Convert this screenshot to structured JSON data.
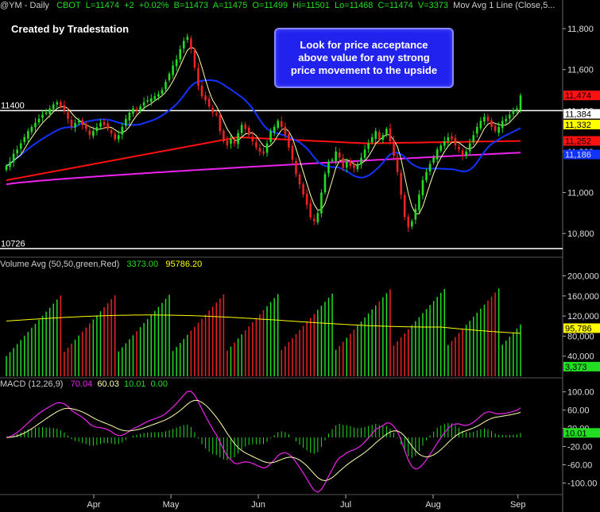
{
  "header": {
    "symbol": "@YM - Daily",
    "exchange": "CBOT",
    "last": "L=11474",
    "change": "+2",
    "change_pct": "+0.02%",
    "bid": "B=11473",
    "ask": "A=11475",
    "open": "O=11499",
    "high": "Hi=11501",
    "low": "Lo=11468",
    "close": "C=11474",
    "volume": "V=3373",
    "study": "Mov Avg 1 Line  (Close,5..."
  },
  "created_by": "Created by Tradestation",
  "annotation": [
    "Look for price acceptance",
    "above value for any strong",
    "price movement to the upside"
  ],
  "volume_header": {
    "name": "Volume Avg  (50,50,green,Red)",
    "v1": "3373.00",
    "v2": "95786.20"
  },
  "macd_header": {
    "name": "MACD  (12,26,9)",
    "v1": "70.04",
    "v2": "60.03",
    "v3": "10.01",
    "v4": "0.00"
  },
  "colors": {
    "up": "#22dd22",
    "down": "#ee2222",
    "ma5": "#ffffaa",
    "blue": "#1133ff",
    "red": "#ff1111",
    "magenta": "#ee22ee",
    "white": "#ffffff",
    "yellow": "#ffff00"
  },
  "chart_data": [
    {
      "type": "candlestick",
      "title": "@YM - Daily",
      "x_labels": [
        "Apr",
        "May",
        "Jun",
        "Jul",
        "Aug",
        "Sep"
      ],
      "y_ticks": [
        10800,
        11000,
        11200,
        11400,
        11600,
        11800
      ],
      "y_tick_labels": [
        "10,800",
        "11,000",
        "11,200",
        "11,400",
        "11,600",
        "11,800"
      ],
      "ylim": [
        10700,
        11870
      ],
      "horizontal_lines": [
        {
          "value": 11400,
          "label": "11400"
        },
        {
          "value": 10726,
          "label": "10726"
        }
      ],
      "price_tags": [
        {
          "label": "11,474",
          "value": 11474,
          "color": "#ff1111"
        },
        {
          "label": "11,384",
          "value": 11384,
          "color": "#ffffff"
        },
        {
          "label": "11,332",
          "value": 11332,
          "color": "#ffff00"
        },
        {
          "label": "11,252",
          "value": 11252,
          "color": "#ff1111"
        },
        {
          "label": "11,186",
          "value": 11186,
          "color": "#1133ff"
        }
      ],
      "close": [
        11130,
        11150,
        11190,
        11210,
        11240,
        11270,
        11300,
        11320,
        11340,
        11360,
        11380,
        11390,
        11410,
        11430,
        11440,
        11420,
        11400,
        11360,
        11320,
        11340,
        11350,
        11330,
        11310,
        11280,
        11300,
        11320,
        11340,
        11330,
        11310,
        11290,
        11260,
        11280,
        11320,
        11360,
        11390,
        11410,
        11400,
        11420,
        11440,
        11450,
        11460,
        11470,
        11480,
        11500,
        11540,
        11580,
        11620,
        11650,
        11700,
        11740,
        11760,
        11700,
        11610,
        11520,
        11470,
        11450,
        11420,
        11390,
        11380,
        11300,
        11250,
        11230,
        11260,
        11240,
        11290,
        11330,
        11310,
        11280,
        11250,
        11220,
        11200,
        11190,
        11240,
        11300,
        11320,
        11350,
        11320,
        11280,
        11220,
        11160,
        11090,
        11040,
        10990,
        10940,
        10880,
        10860,
        10900,
        11000,
        11090,
        11150,
        11160,
        11200,
        11170,
        11120,
        11150,
        11130,
        11120,
        11140,
        11170,
        11210,
        11240,
        11270,
        11300,
        11260,
        11280,
        11310,
        11250,
        11180,
        11100,
        10990,
        10880,
        10830,
        10860,
        10920,
        10990,
        11060,
        11100,
        11140,
        11170,
        11210,
        11230,
        11250,
        11270,
        11260,
        11230,
        11210,
        11180,
        11200,
        11240,
        11280,
        11320,
        11350,
        11370,
        11350,
        11320,
        11300,
        11320,
        11350,
        11360,
        11380,
        11400,
        11410,
        11474
      ],
      "volume_ylim": [
        0,
        215000
      ],
      "volume_ticks": [
        40000,
        80000,
        120000,
        160000,
        200000
      ],
      "volume_tick_labels": [
        "40,000",
        "80,000",
        "120,000",
        "160,000",
        "200,000"
      ],
      "volume_tags": [
        {
          "label": "95,786",
          "value": 95786,
          "color": "#ffff00"
        },
        {
          "label": "3,373",
          "value": 3373,
          "color": "#22dd22"
        }
      ],
      "macd_ylim": [
        -120,
        115
      ],
      "macd_ticks": [
        -100,
        -60,
        -20,
        20,
        60,
        100
      ],
      "macd_tick_labels": [
        "-100.00",
        "-60.00",
        "-20.00",
        "20.00",
        "60.00",
        "100.00"
      ],
      "macd_tags": [
        {
          "label": "10.01",
          "value": 10.01,
          "color": "#22dd22"
        }
      ]
    }
  ]
}
